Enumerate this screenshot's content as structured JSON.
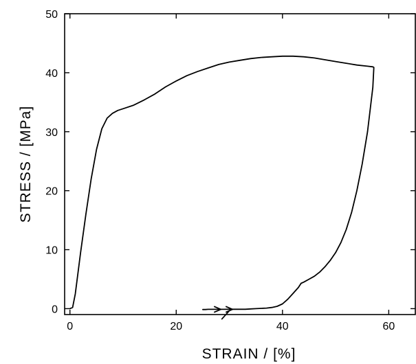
{
  "chart_data": {
    "type": "line",
    "title": "",
    "xlabel": "STRAIN  /  [%]",
    "ylabel": "STRESS  /  [MPa]",
    "xlim": [
      -1,
      65
    ],
    "ylim": [
      -1,
      50
    ],
    "xticks": [
      0,
      20,
      40,
      60
    ],
    "yticks": [
      0,
      10,
      20,
      30,
      40,
      50
    ],
    "grid": false,
    "legend": "none",
    "series": [
      {
        "name": "",
        "x": [
          0,
          0.5,
          1,
          2,
          3,
          4,
          5,
          6,
          7,
          8,
          9,
          10,
          12,
          14,
          16,
          18,
          20,
          22,
          24,
          26,
          28,
          30,
          32,
          34,
          36,
          38,
          40,
          42,
          44,
          46,
          48,
          50,
          52,
          54,
          56,
          57,
          57.2,
          57,
          56,
          55,
          54,
          53,
          52,
          51,
          50,
          49,
          48,
          47,
          46,
          45,
          44,
          43.5,
          43,
          42,
          41,
          40,
          39,
          38,
          37,
          36,
          35,
          34,
          33,
          32,
          31,
          30,
          29,
          28,
          27,
          26,
          25.5,
          25
        ],
        "y": [
          0,
          0.2,
          2.5,
          9.5,
          16,
          22,
          27,
          30.5,
          32.3,
          33.1,
          33.6,
          33.9,
          34.5,
          35.4,
          36.4,
          37.6,
          38.6,
          39.5,
          40.2,
          40.8,
          41.4,
          41.8,
          42.1,
          42.4,
          42.6,
          42.7,
          42.8,
          42.8,
          42.7,
          42.5,
          42.2,
          41.9,
          41.6,
          41.3,
          41.1,
          41,
          40.9,
          37.5,
          30,
          24.5,
          20,
          16.3,
          13.4,
          11.2,
          9.5,
          8.2,
          7.1,
          6.2,
          5.5,
          5,
          4.5,
          4.3,
          3.6,
          2.6,
          1.6,
          0.8,
          0.4,
          0.2,
          0.1,
          0.05,
          0,
          -0.05,
          -0.1,
          -0.1,
          -0.1,
          -0.1,
          -0.12,
          -0.12,
          -0.12,
          -0.12,
          -0.15,
          -0.15
        ]
      }
    ]
  }
}
